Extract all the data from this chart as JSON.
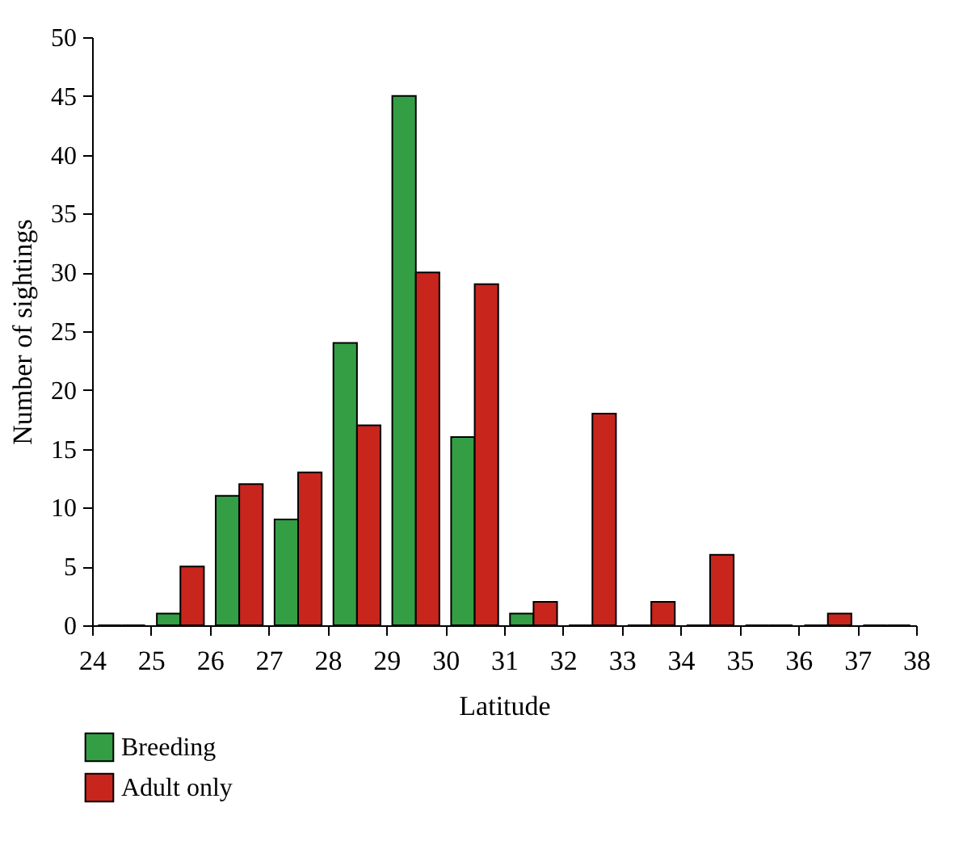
{
  "chart_data": {
    "type": "histogram",
    "xlabel": "Latitude",
    "ylabel": "Number of sightings",
    "bins": [
      24,
      25,
      26,
      27,
      28,
      29,
      30,
      31,
      32,
      33,
      34,
      35,
      36,
      37,
      38
    ],
    "series": [
      {
        "name": "Breeding",
        "color": "#339e44",
        "values": [
          0,
          1,
          11,
          9,
          24,
          45,
          16,
          1,
          0,
          0,
          0,
          0,
          0,
          0
        ]
      },
      {
        "name": "Adult only",
        "color": "#c8251d",
        "values": [
          0,
          5,
          12,
          13,
          17,
          30,
          29,
          2,
          18,
          2,
          6,
          0,
          1,
          0
        ]
      }
    ],
    "xlim": [
      24,
      38
    ],
    "xticks": [
      24,
      25,
      26,
      27,
      28,
      29,
      30,
      31,
      32,
      33,
      34,
      35,
      36,
      37,
      38
    ],
    "ylim": [
      0,
      50
    ],
    "yticks": [
      0,
      5,
      10,
      15,
      20,
      25,
      30,
      35,
      40,
      45,
      50
    ],
    "grid": false,
    "legend": "bottom left"
  }
}
